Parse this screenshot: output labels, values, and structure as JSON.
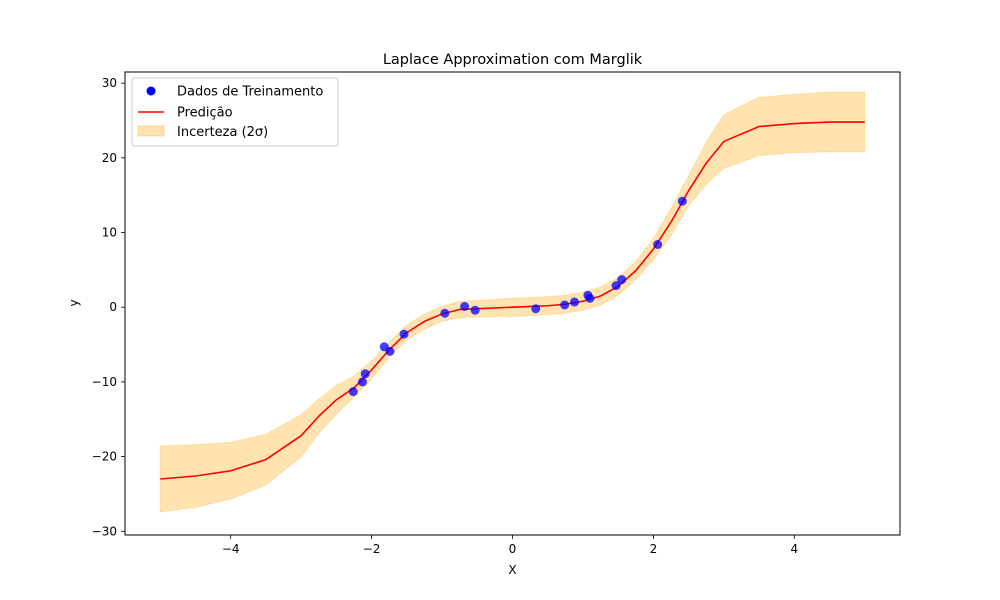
{
  "chart_data": {
    "type": "line",
    "title": "Laplace Approximation com Marglik",
    "xlabel": "X",
    "ylabel": "y",
    "xlim": [
      -5.5,
      5.5
    ],
    "ylim": [
      -30.5,
      31.5
    ],
    "xticks": [
      -4,
      -2,
      0,
      2,
      4
    ],
    "yticks": [
      -30,
      -20,
      -10,
      0,
      10,
      20,
      30
    ],
    "grid": false,
    "legend": {
      "placement": "top-left",
      "entries": [
        "Dados de Treinamento",
        "Predição",
        "Incerteza (2σ)"
      ]
    },
    "colors": {
      "points": "#0000ff",
      "prediction": "#ff0000",
      "uncertainty": "#ffa500"
    },
    "series": [
      {
        "name": "Dados de Treinamento",
        "kind": "scatter",
        "x": [
          -2.26,
          -2.13,
          -2.09,
          -1.82,
          -1.74,
          -1.54,
          -0.96,
          -0.68,
          -0.53,
          0.33,
          0.74,
          0.88,
          1.07,
          1.1,
          1.47,
          1.55,
          2.06,
          2.41
        ],
        "y": [
          -11.3,
          -10.0,
          -8.9,
          -5.3,
          -5.9,
          -3.6,
          -0.8,
          0.1,
          -0.4,
          -0.2,
          0.3,
          0.7,
          1.6,
          1.2,
          2.9,
          3.7,
          8.4,
          14.2
        ]
      },
      {
        "name": "Predição",
        "kind": "line",
        "x": [
          -5.0,
          -4.5,
          -4.0,
          -3.5,
          -3.0,
          -2.75,
          -2.5,
          -2.25,
          -2.0,
          -1.75,
          -1.5,
          -1.25,
          -1.0,
          -0.75,
          -0.5,
          0.0,
          0.5,
          0.75,
          1.0,
          1.25,
          1.5,
          1.75,
          2.0,
          2.25,
          2.5,
          2.75,
          3.0,
          3.5,
          4.0,
          4.5,
          5.0
        ],
        "y": [
          -23.0,
          -22.6,
          -21.9,
          -20.4,
          -17.2,
          -14.6,
          -12.4,
          -10.8,
          -8.4,
          -5.7,
          -3.4,
          -1.9,
          -0.9,
          -0.3,
          -0.2,
          0.0,
          0.2,
          0.4,
          0.8,
          1.5,
          2.8,
          4.9,
          7.8,
          11.4,
          15.6,
          19.3,
          22.2,
          24.2,
          24.6,
          24.8,
          24.8
        ]
      },
      {
        "name": "Incerteza (2σ)",
        "kind": "band",
        "x": [
          -5.0,
          -4.5,
          -4.0,
          -3.5,
          -3.0,
          -2.75,
          -2.5,
          -2.25,
          -2.0,
          -1.75,
          -1.5,
          -1.25,
          -1.0,
          -0.75,
          -0.5,
          0.0,
          0.5,
          0.75,
          1.0,
          1.25,
          1.5,
          1.75,
          2.0,
          2.25,
          2.5,
          2.75,
          3.0,
          3.5,
          4.0,
          4.5,
          5.0
        ],
        "lower": [
          -27.4,
          -26.8,
          -25.7,
          -23.8,
          -20.0,
          -16.9,
          -14.3,
          -12.0,
          -9.6,
          -6.7,
          -4.4,
          -2.9,
          -1.9,
          -1.4,
          -1.3,
          -1.2,
          -1.0,
          -0.8,
          -0.4,
          0.3,
          1.6,
          3.7,
          6.4,
          9.6,
          13.6,
          16.5,
          18.6,
          20.3,
          20.7,
          20.8,
          20.8
        ],
        "upper": [
          -18.6,
          -18.4,
          -18.1,
          -17.0,
          -14.4,
          -12.3,
          -10.5,
          -9.2,
          -7.2,
          -4.7,
          -2.4,
          -0.9,
          0.1,
          0.8,
          0.9,
          1.2,
          1.4,
          1.6,
          2.0,
          2.7,
          4.0,
          6.1,
          9.2,
          13.2,
          17.6,
          22.1,
          25.8,
          28.1,
          28.5,
          28.8,
          28.8
        ]
      }
    ]
  }
}
